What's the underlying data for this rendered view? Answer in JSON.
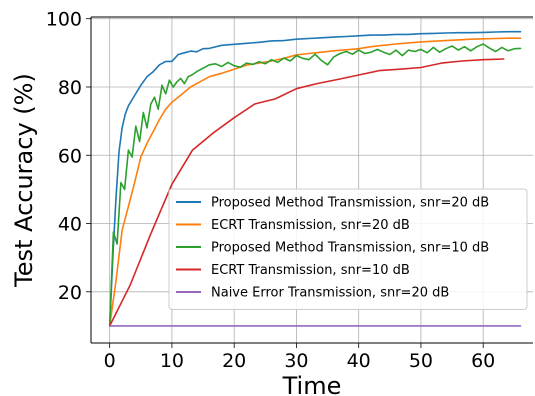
{
  "chart_data": {
    "type": "line",
    "title": "",
    "xlabel": "Time",
    "ylabel": "Test Accuracy (%)",
    "xlim": [
      -3,
      68
    ],
    "ylim": [
      5,
      100.5
    ],
    "xticks": [
      0,
      10,
      20,
      30,
      40,
      50,
      60
    ],
    "yticks": [
      20,
      40,
      60,
      80,
      100
    ],
    "grid": true,
    "legend_position": "center-right",
    "series": [
      {
        "name": "Proposed Method Transmission, snr=20 dB",
        "color": "#1f77b4",
        "x": [
          0,
          0.5,
          1,
          1.5,
          2,
          2.5,
          3,
          4,
          5,
          6,
          7,
          8,
          9,
          10,
          11,
          12,
          13,
          14,
          15,
          16,
          18,
          20,
          22,
          24,
          26,
          28,
          30,
          32,
          34,
          36,
          38,
          40,
          42,
          44,
          46,
          48,
          50,
          52,
          54,
          56,
          58,
          60,
          62,
          64,
          66
        ],
        "y": [
          10,
          30,
          47,
          61,
          68,
          72,
          74.5,
          77.5,
          80.5,
          83,
          84.5,
          86.5,
          87.5,
          87.5,
          89.5,
          90,
          90.5,
          90.3,
          91.2,
          91.3,
          92.2,
          92.5,
          92.8,
          93.1,
          93.5,
          93.6,
          94,
          94.2,
          94.4,
          94.6,
          94.8,
          95,
          95.2,
          95.2,
          95.4,
          95.4,
          95.6,
          95.7,
          95.8,
          95.9,
          95.9,
          96,
          96.1,
          96.2,
          96.2
        ]
      },
      {
        "name": "ECRT Transmission, snr=20 dB",
        "color": "#ff7f0e",
        "x": [
          0,
          1,
          2,
          3,
          4,
          5,
          6,
          7,
          8,
          9,
          10,
          11,
          12,
          13,
          14,
          16,
          18,
          20,
          22,
          24,
          26,
          28,
          30,
          32,
          34,
          36,
          38,
          40,
          42,
          44,
          46,
          48,
          50,
          52,
          54,
          56,
          58,
          60,
          62,
          64,
          66
        ],
        "y": [
          10,
          23,
          38,
          45,
          52,
          59.5,
          63.5,
          67,
          70.5,
          73.5,
          75.5,
          77,
          78.5,
          80,
          81,
          83,
          84,
          85.2,
          86.4,
          87,
          87.6,
          88.4,
          89.4,
          89.8,
          90.2,
          90.6,
          90.9,
          91.2,
          91.8,
          92.2,
          92.6,
          92.9,
          93.2,
          93.4,
          93.6,
          93.8,
          94,
          94.1,
          94.2,
          94.3,
          94.3
        ]
      },
      {
        "name": "Proposed Method Transmission, snr=10 dB",
        "color": "#2ca02c",
        "x": [
          0,
          0.6,
          1.2,
          1.8,
          2.4,
          3,
          3.6,
          4.2,
          4.8,
          5.4,
          6,
          6.6,
          7.2,
          7.8,
          8.4,
          9,
          9.6,
          10.2,
          10.8,
          11.4,
          12,
          12.6,
          13.2,
          14,
          15,
          16,
          17,
          18,
          19,
          20,
          21,
          22,
          23,
          24,
          25,
          26,
          27,
          28,
          29,
          30,
          31,
          32,
          33,
          34,
          35,
          36,
          37,
          38,
          39,
          40,
          41,
          42,
          43,
          44,
          45,
          46,
          47,
          48,
          49,
          50,
          51,
          52,
          53,
          54,
          55,
          56,
          57,
          58,
          59,
          60,
          61,
          62,
          63,
          64,
          65,
          66
        ],
        "y": [
          10,
          37.5,
          34,
          52,
          50,
          61.5,
          59.5,
          68.5,
          64,
          72.5,
          68,
          75,
          77,
          73.5,
          80.5,
          78,
          82,
          80,
          81.5,
          82.5,
          81,
          83,
          83.5,
          84.5,
          85.5,
          86.5,
          86.8,
          86,
          87.2,
          86.2,
          85.8,
          87,
          86.6,
          87.4,
          86.8,
          88,
          87.2,
          88.5,
          87.6,
          89.2,
          88.4,
          88,
          89.6,
          87.8,
          86.5,
          88.8,
          89.8,
          90.4,
          89.6,
          90.8,
          89.8,
          90.2,
          91,
          90.2,
          89.5,
          90.8,
          89.2,
          90.8,
          90.4,
          91,
          90,
          91.6,
          90.2,
          91.2,
          92,
          90.8,
          91.8,
          90.6,
          91.8,
          92.6,
          91.4,
          90.4,
          91.6,
          90.6,
          91.2,
          91.3
        ]
      },
      {
        "name": "ECRT Transmission, snr=10 dB",
        "color": "#d62728",
        "x": [
          0,
          3.3,
          6.6,
          10,
          13.3,
          16.6,
          20,
          23.3,
          26.6,
          30,
          33.3,
          36.6,
          40,
          43.3,
          46.6,
          50,
          53.3,
          56.6,
          60,
          63.3
        ],
        "y": [
          10,
          22,
          37,
          51.5,
          61.5,
          66.5,
          71,
          75,
          76.5,
          79.5,
          81,
          82.2,
          83.5,
          84.8,
          85.2,
          85.7,
          87,
          87.6,
          88,
          88.2
        ]
      },
      {
        "name": "Naive Error Transmission, snr=20 dB",
        "color": "#9467bd",
        "x": [
          0,
          66
        ],
        "y": [
          10,
          10
        ]
      }
    ]
  }
}
